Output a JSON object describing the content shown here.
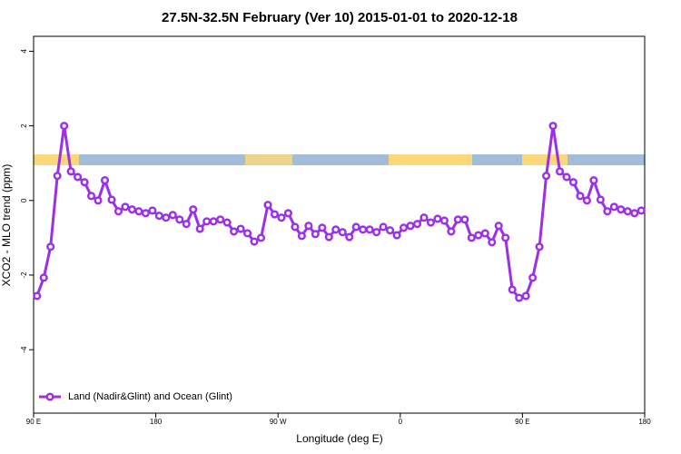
{
  "chart_data": {
    "type": "line",
    "title": "27.5N-32.5N February (Ver 10)   2015-01-01 to 2020-12-18",
    "x_label": "Longitude (deg E)",
    "y_label": "XCO2 - MLO trend (ppm)",
    "xlim": [
      90,
      540
    ],
    "ylim": [
      -5.7,
      4.4
    ],
    "xticks": [
      {
        "value": 90,
        "label": "90 E"
      },
      180,
      {
        "value": 270,
        "label": "90 W"
      },
      {
        "value": 360,
        "label": "0"
      },
      {
        "value": 450,
        "label": "90 E"
      },
      {
        "value": 540,
        "label": "180"
      }
    ],
    "yticks": [
      -4,
      -2,
      0,
      2,
      4
    ],
    "legend": "bottomleft",
    "x": [
      92.5,
      97.5,
      102.5,
      107.5,
      112.5,
      117.5,
      122.5,
      127.5,
      132.5,
      137.5,
      142.5,
      147.5,
      152.5,
      157.5,
      162.5,
      167.5,
      172.5,
      177.5,
      182.5,
      187.5,
      192.5,
      197.5,
      202.5,
      207.5,
      212.5,
      217.5,
      222.5,
      227.5,
      232.5,
      237.5,
      242.5,
      247.5,
      252.5,
      257.5,
      262.5,
      267.5,
      272.5,
      277.5,
      282.5,
      287.5,
      292.5,
      297.5,
      302.5,
      307.5,
      312.5,
      317.5,
      322.5,
      327.5,
      332.5,
      337.5,
      342.5,
      347.5,
      352.5,
      357.5,
      362.5,
      367.5,
      372.5,
      377.5,
      382.5,
      387.5,
      392.5,
      397.5,
      402.5,
      407.5,
      412.5,
      417.5,
      422.5,
      427.5,
      432.5,
      437.5,
      442.5,
      447.5,
      452.5,
      457.5,
      462.5,
      467.5,
      472.5,
      477.5,
      482.5,
      487.5,
      492.5,
      497.5,
      502.5,
      507.5,
      512.5,
      517.5,
      522.5,
      527.5,
      532.5,
      537.5
    ],
    "series": [
      {
        "name": "Land (Nadir&Glint) and Ocean (Glint)",
        "color": "#9b30e6",
        "values": [
          -2.56,
          -2.07,
          -1.24,
          0.66,
          2.0,
          0.78,
          0.63,
          0.49,
          0.12,
          0,
          0.54,
          0.02,
          -0.29,
          -0.17,
          -0.24,
          -0.29,
          -0.34,
          -0.27,
          -0.41,
          -0.46,
          -0.39,
          -0.51,
          -0.63,
          -0.24,
          -0.76,
          -0.56,
          -0.56,
          -0.51,
          -0.59,
          -0.83,
          -0.76,
          -0.88,
          -1.1,
          -1.0,
          -0.12,
          -0.37,
          -0.46,
          -0.34,
          -0.71,
          -0.95,
          -0.68,
          -0.9,
          -0.73,
          -0.98,
          -0.78,
          -0.85,
          -0.98,
          -0.71,
          -0.78,
          -0.78,
          -0.85,
          -0.71,
          -0.8,
          -0.93,
          -0.73,
          -0.68,
          -0.63,
          -0.46,
          -0.59,
          -0.49,
          -0.54,
          -0.83,
          -0.51,
          -0.51,
          -1.0,
          -0.93,
          -0.88,
          -1.12,
          -0.68,
          -1.0,
          -2.39,
          -2.61,
          -2.56,
          -2.07,
          -1.24,
          0.66,
          2.0,
          0.78,
          0.63,
          0.49,
          0.12,
          0,
          0.54,
          0.02,
          -0.29,
          -0.17,
          -0.24,
          -0.29,
          -0.34,
          -0.27
        ]
      }
    ]
  }
}
